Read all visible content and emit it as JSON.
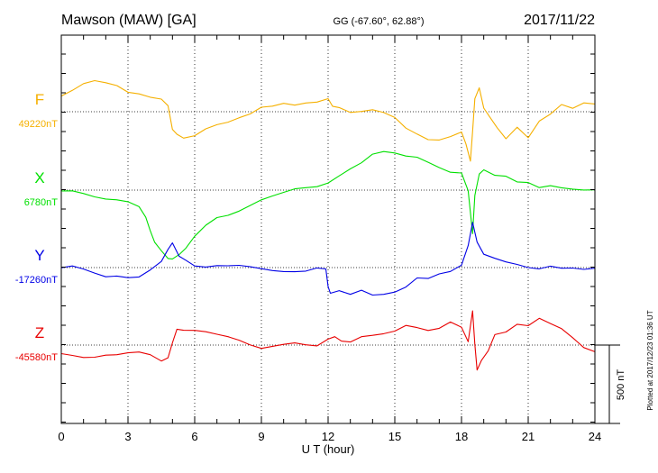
{
  "header": {
    "station": "Mawson (MAW)  [GA]",
    "coords": "GG (-67.60°,  62.88°)",
    "date": "2017/11/22"
  },
  "footer": {
    "plotted": "Plotted at 2017/12/23 01:36 UT"
  },
  "chart_data": {
    "type": "line",
    "title": "Mawson (MAW)  [GA]",
    "xlabel": "U T (hour)",
    "xlim": [
      0,
      24
    ],
    "xticks": [
      "0",
      "3",
      "6",
      "9",
      "12",
      "15",
      "18",
      "21",
      "24"
    ],
    "grid": true,
    "scale_bar": {
      "label": "500 nT",
      "value_nT": 500
    },
    "series": [
      {
        "name": "F",
        "baseline_label": "49220nT",
        "baseline_nT": 49220,
        "color": "#f5b000",
        "x": [
          0,
          0.5,
          1.0,
          1.5,
          2.0,
          2.5,
          3.0,
          3.5,
          4.0,
          4.5,
          4.8,
          5.0,
          5.2,
          5.5,
          6.0,
          6.5,
          7.0,
          7.5,
          8.0,
          8.5,
          9.0,
          9.5,
          10.0,
          10.5,
          11.0,
          11.5,
          12.0,
          12.2,
          12.5,
          13.0,
          13.5,
          14.0,
          14.5,
          15.0,
          15.5,
          16.0,
          16.5,
          17.0,
          17.5,
          18.0,
          18.2,
          18.4,
          18.5,
          18.6,
          18.8,
          19.0,
          19.3,
          19.6,
          20.0,
          20.5,
          21.0,
          21.5,
          22.0,
          22.5,
          23.0,
          23.5,
          24.0
        ],
        "values": [
          49320,
          49360,
          49390,
          49400,
          49395,
          49380,
          49330,
          49320,
          49310,
          49300,
          49260,
          49100,
          49060,
          49050,
          49080,
          49120,
          49140,
          49160,
          49190,
          49210,
          49250,
          49260,
          49280,
          49260,
          49270,
          49280,
          49300,
          49260,
          49240,
          49210,
          49220,
          49230,
          49210,
          49180,
          49120,
          49080,
          49040,
          49050,
          49080,
          49100,
          49020,
          48900,
          49100,
          49300,
          49380,
          49250,
          49180,
          49100,
          49050,
          49120,
          49060,
          49160,
          49200,
          49260,
          49240,
          49270,
          49260
        ]
      },
      {
        "name": "X",
        "baseline_label": "6780nT",
        "baseline_nT": 6780,
        "color": "#00e000",
        "x": [
          0,
          0.5,
          1.0,
          1.5,
          2.0,
          2.5,
          3.0,
          3.5,
          3.8,
          4.0,
          4.2,
          4.5,
          4.8,
          5.0,
          5.3,
          5.6,
          6.0,
          6.5,
          7.0,
          7.5,
          8.0,
          8.5,
          9.0,
          9.5,
          10.0,
          10.5,
          11.0,
          11.5,
          12.0,
          12.5,
          13.0,
          13.5,
          14.0,
          14.5,
          15.0,
          15.5,
          16.0,
          16.5,
          17.0,
          17.5,
          18.0,
          18.3,
          18.5,
          18.6,
          18.8,
          19.0,
          19.5,
          20.0,
          20.5,
          21.0,
          21.5,
          22.0,
          22.5,
          23.0,
          23.5,
          24.0
        ],
        "values": [
          6780,
          6780,
          6760,
          6740,
          6730,
          6720,
          6700,
          6670,
          6600,
          6520,
          6460,
          6380,
          6330,
          6320,
          6370,
          6420,
          6480,
          6540,
          6590,
          6620,
          6650,
          6680,
          6720,
          6750,
          6770,
          6790,
          6800,
          6810,
          6830,
          6870,
          6920,
          6960,
          7000,
          7010,
          7010,
          6990,
          6970,
          6940,
          6920,
          6890,
          6880,
          6780,
          6500,
          6750,
          6900,
          6920,
          6880,
          6870,
          6840,
          6840,
          6800,
          6810,
          6800,
          6790,
          6780,
          6780
        ]
      },
      {
        "name": "Y",
        "baseline_label": "-17260nT",
        "baseline_nT": -17260,
        "color": "#0000e6",
        "x": [
          0,
          0.5,
          1.0,
          1.5,
          2.0,
          2.5,
          3.0,
          3.5,
          4.0,
          4.5,
          4.8,
          5.0,
          5.3,
          5.6,
          6.0,
          6.5,
          7.0,
          7.5,
          8.0,
          8.5,
          9.0,
          9.5,
          10.0,
          10.5,
          11.0,
          11.5,
          11.9,
          12.0,
          12.1,
          12.5,
          13.0,
          13.5,
          14.0,
          14.5,
          15.0,
          15.5,
          16.0,
          16.5,
          17.0,
          17.5,
          18.0,
          18.3,
          18.5,
          18.7,
          19.0,
          19.5,
          20.0,
          20.5,
          21.0,
          21.5,
          22.0,
          22.5,
          23.0,
          23.5,
          24.0
        ],
        "values": [
          -17260,
          -17250,
          -17270,
          -17290,
          -17310,
          -17310,
          -17320,
          -17310,
          -17270,
          -17220,
          -17150,
          -17100,
          -17190,
          -17220,
          -17250,
          -17260,
          -17250,
          -17250,
          -17250,
          -17260,
          -17270,
          -17280,
          -17290,
          -17290,
          -17280,
          -17260,
          -17270,
          -17380,
          -17420,
          -17400,
          -17410,
          -17390,
          -17430,
          -17420,
          -17400,
          -17380,
          -17330,
          -17330,
          -17300,
          -17290,
          -17250,
          -17120,
          -16980,
          -17100,
          -17180,
          -17210,
          -17230,
          -17240,
          -17260,
          -17270,
          -17250,
          -17260,
          -17260,
          -17270,
          -17260
        ]
      },
      {
        "name": "Z",
        "baseline_label": "-45580nT",
        "baseline_nT": -45580,
        "color": "#e80000",
        "x": [
          0,
          0.5,
          1.0,
          1.5,
          2.0,
          2.5,
          3.0,
          3.5,
          4.0,
          4.5,
          4.8,
          5.0,
          5.2,
          5.5,
          6.0,
          6.5,
          7.0,
          7.5,
          8.0,
          8.5,
          9.0,
          9.5,
          10.0,
          10.5,
          11.0,
          11.5,
          12.0,
          12.3,
          12.6,
          13.0,
          13.5,
          14.0,
          14.5,
          15.0,
          15.5,
          16.0,
          16.5,
          17.0,
          17.5,
          18.0,
          18.3,
          18.5,
          18.6,
          18.7,
          18.9,
          19.2,
          19.5,
          20.0,
          20.5,
          21.0,
          21.5,
          22.0,
          22.5,
          23.0,
          23.5,
          24.0
        ],
        "values": [
          -45640,
          -45660,
          -45670,
          -45660,
          -45650,
          -45650,
          -45630,
          -45620,
          -45640,
          -45680,
          -45650,
          -45560,
          -45480,
          -45470,
          -45480,
          -45490,
          -45500,
          -45520,
          -45550,
          -45580,
          -45600,
          -45590,
          -45580,
          -45570,
          -45580,
          -45590,
          -45550,
          -45520,
          -45550,
          -45560,
          -45530,
          -45520,
          -45500,
          -45480,
          -45450,
          -45460,
          -45470,
          -45460,
          -45430,
          -45460,
          -45560,
          -45350,
          -45580,
          -45720,
          -45670,
          -45610,
          -45520,
          -45500,
          -45450,
          -45470,
          -45430,
          -45450,
          -45480,
          -45540,
          -45600,
          -45620
        ]
      }
    ]
  }
}
